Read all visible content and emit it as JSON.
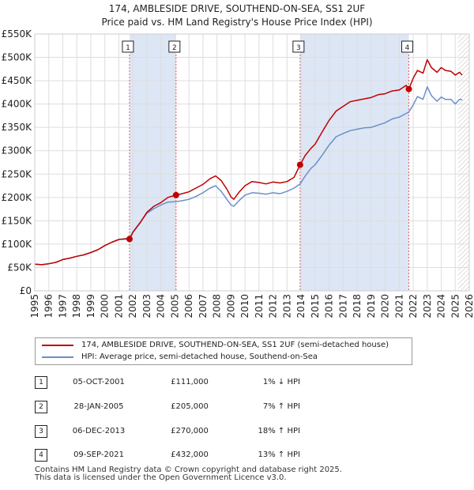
{
  "title_line1": "174, AMBLESIDE DRIVE, SOUTHEND-ON-SEA, SS1 2UF",
  "title_line2": "Price paid vs. HM Land Registry's House Price Index (HPI)",
  "colors": {
    "price_line": "#c00000",
    "hpi_line": "#6b8fc7",
    "shade": "#dde6f5",
    "marker_line": "#e06060",
    "grid": "#dddddd"
  },
  "chart_data": {
    "type": "line",
    "title": "174, AMBLESIDE DRIVE, SOUTHEND-ON-SEA, SS1 2UF",
    "subtitle": "Price paid vs. HM Land Registry's House Price Index (HPI)",
    "xlim": [
      1995,
      2026
    ],
    "ylim": [
      0,
      550000
    ],
    "y_ticks": [
      0,
      50000,
      100000,
      150000,
      200000,
      250000,
      300000,
      350000,
      400000,
      450000,
      500000,
      550000
    ],
    "y_tick_labels": [
      "£0",
      "£50K",
      "£100K",
      "£150K",
      "£200K",
      "£250K",
      "£300K",
      "£350K",
      "£400K",
      "£450K",
      "£500K",
      "£550K"
    ],
    "x_ticks": [
      1995,
      1996,
      1997,
      1998,
      1999,
      2000,
      2001,
      2002,
      2003,
      2004,
      2005,
      2006,
      2007,
      2008,
      2009,
      2010,
      2011,
      2012,
      2013,
      2014,
      2015,
      2016,
      2017,
      2018,
      2019,
      2020,
      2021,
      2022,
      2023,
      2024,
      2025,
      2026
    ],
    "grid": true,
    "shaded_ranges": [
      [
        2001.76,
        2005.08
      ],
      [
        2013.93,
        2021.69
      ]
    ],
    "forecast_start": 2025.2,
    "series": [
      {
        "name": "174, AMBLESIDE DRIVE, SOUTHEND-ON-SEA, SS1 2UF (semi-detached house)",
        "color": "#c00000",
        "x": [
          1995.0,
          1995.5,
          1996.0,
          1996.5,
          1997.0,
          1997.5,
          1998.0,
          1998.5,
          1999.0,
          1999.5,
          2000.0,
          2000.5,
          2001.0,
          2001.5,
          2001.76,
          2002.0,
          2002.5,
          2003.0,
          2003.5,
          2004.0,
          2004.5,
          2005.08,
          2005.5,
          2006.0,
          2006.5,
          2007.0,
          2007.5,
          2007.9,
          2008.3,
          2008.7,
          2009.0,
          2009.2,
          2009.6,
          2010.0,
          2010.5,
          2011.0,
          2011.5,
          2012.0,
          2012.5,
          2013.0,
          2013.5,
          2013.93,
          2014.3,
          2014.7,
          2015.0,
          2015.5,
          2016.0,
          2016.5,
          2017.0,
          2017.5,
          2018.0,
          2018.5,
          2019.0,
          2019.5,
          2020.0,
          2020.5,
          2021.0,
          2021.5,
          2021.69,
          2022.0,
          2022.3,
          2022.7,
          2023.0,
          2023.3,
          2023.7,
          2024.0,
          2024.3,
          2024.7,
          2025.0,
          2025.3,
          2025.5
        ],
        "y": [
          57000,
          56000,
          58000,
          61000,
          67000,
          70000,
          74000,
          77000,
          82000,
          88000,
          97000,
          104000,
          110000,
          111000,
          111000,
          125000,
          145000,
          168000,
          181000,
          189000,
          200000,
          205000,
          208000,
          212000,
          220000,
          228000,
          240000,
          246000,
          236000,
          218000,
          201000,
          196000,
          212000,
          225000,
          234000,
          232000,
          229000,
          233000,
          231000,
          234000,
          243000,
          270000,
          290000,
          305000,
          314000,
          340000,
          365000,
          385000,
          395000,
          405000,
          408000,
          411000,
          414000,
          420000,
          422000,
          428000,
          430000,
          440000,
          432000,
          455000,
          472000,
          466000,
          495000,
          478000,
          468000,
          478000,
          472000,
          470000,
          462000,
          468000,
          462000
        ]
      },
      {
        "name": "HPI: Average price, semi-detached house, Southend-on-Sea",
        "color": "#6b8fc7",
        "x": [
          1995.0,
          1995.5,
          1996.0,
          1996.5,
          1997.0,
          1997.5,
          1998.0,
          1998.5,
          1999.0,
          1999.5,
          2000.0,
          2000.5,
          2001.0,
          2001.5,
          2001.76,
          2002.0,
          2002.5,
          2003.0,
          2003.5,
          2004.0,
          2004.5,
          2005.08,
          2005.5,
          2006.0,
          2006.5,
          2007.0,
          2007.5,
          2007.9,
          2008.3,
          2008.7,
          2009.0,
          2009.2,
          2009.6,
          2010.0,
          2010.5,
          2011.0,
          2011.5,
          2012.0,
          2012.5,
          2013.0,
          2013.5,
          2013.93,
          2014.3,
          2014.7,
          2015.0,
          2015.5,
          2016.0,
          2016.5,
          2017.0,
          2017.5,
          2018.0,
          2018.5,
          2019.0,
          2019.5,
          2020.0,
          2020.5,
          2021.0,
          2021.5,
          2021.69,
          2022.0,
          2022.3,
          2022.7,
          2023.0,
          2023.3,
          2023.7,
          2024.0,
          2024.3,
          2024.7,
          2025.0,
          2025.3,
          2025.5
        ],
        "y": [
          57000,
          56000,
          58000,
          61000,
          67000,
          70000,
          74000,
          77000,
          82000,
          88000,
          97000,
          104000,
          110000,
          112000,
          112000,
          126000,
          146000,
          166000,
          176000,
          184000,
          190000,
          191000,
          193000,
          196000,
          202000,
          210000,
          220000,
          225000,
          213000,
          196000,
          184000,
          181000,
          194000,
          205000,
          210000,
          209000,
          207000,
          210000,
          208000,
          213000,
          220000,
          229000,
          246000,
          262000,
          270000,
          290000,
          312000,
          330000,
          337000,
          343000,
          346000,
          349000,
          350000,
          355000,
          360000,
          368000,
          372000,
          380000,
          383000,
          398000,
          416000,
          410000,
          437000,
          418000,
          406000,
          415000,
          410000,
          410000,
          400000,
          410000,
          409000
        ]
      }
    ],
    "sales": [
      {
        "label": "1",
        "x": 2001.76,
        "y": 111000
      },
      {
        "label": "2",
        "x": 2005.08,
        "y": 205000
      },
      {
        "label": "3",
        "x": 2013.93,
        "y": 270000
      },
      {
        "label": "4",
        "x": 2021.69,
        "y": 432000
      }
    ]
  },
  "legend": {
    "items": [
      {
        "label": "174, AMBLESIDE DRIVE, SOUTHEND-ON-SEA, SS1 2UF (semi-detached house)"
      },
      {
        "label": "HPI: Average price, semi-detached house, Southend-on-Sea"
      }
    ]
  },
  "transactions": [
    {
      "num": "1",
      "date": "05-OCT-2001",
      "price": "£111,000",
      "hpi": "1% ↓ HPI"
    },
    {
      "num": "2",
      "date": "28-JAN-2005",
      "price": "£205,000",
      "hpi": "7% ↑ HPI"
    },
    {
      "num": "3",
      "date": "06-DEC-2013",
      "price": "£270,000",
      "hpi": "18% ↑ HPI"
    },
    {
      "num": "4",
      "date": "09-SEP-2021",
      "price": "£432,000",
      "hpi": "13% ↑ HPI"
    }
  ],
  "footer": {
    "line1": "Contains HM Land Registry data © Crown copyright and database right 2025.",
    "line2": "This data is licensed under the Open Government Licence v3.0."
  }
}
